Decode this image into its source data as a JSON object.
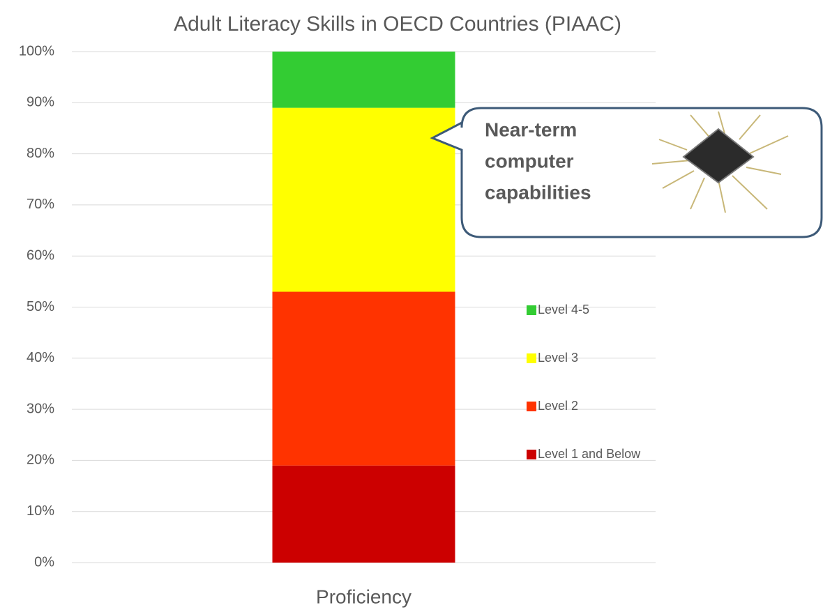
{
  "chart_data": {
    "type": "stacked_bar",
    "title": "Adult Literacy Skills in OECD Countries (PIAAC)",
    "categories": [
      "Proficiency"
    ],
    "series": [
      {
        "name": "Level 1 and Below",
        "color": "#cc0000",
        "values": [
          19
        ]
      },
      {
        "name": "Level 2",
        "color": "#ff3300",
        "values": [
          34
        ]
      },
      {
        "name": "Level 3",
        "color": "#ffff00",
        "values": [
          36
        ]
      },
      {
        "name": "Level 4-5",
        "color": "#33cc33",
        "values": [
          11
        ]
      }
    ],
    "ylim": [
      0,
      100
    ],
    "yticks": [
      {
        "value": 0,
        "label": "0%"
      },
      {
        "value": 10,
        "label": "10%"
      },
      {
        "value": 20,
        "label": "20%"
      },
      {
        "value": 30,
        "label": "30%"
      },
      {
        "value": 40,
        "label": "40%"
      },
      {
        "value": 50,
        "label": "50%"
      },
      {
        "value": 60,
        "label": "60%"
      },
      {
        "value": 70,
        "label": "70%"
      },
      {
        "value": 80,
        "label": "80%"
      },
      {
        "value": 90,
        "label": "90%"
      },
      {
        "value": 100,
        "label": "100%"
      }
    ],
    "grid": true,
    "legend": "right",
    "annotation": [
      "Near-term",
      "computer",
      "capabilities"
    ]
  }
}
